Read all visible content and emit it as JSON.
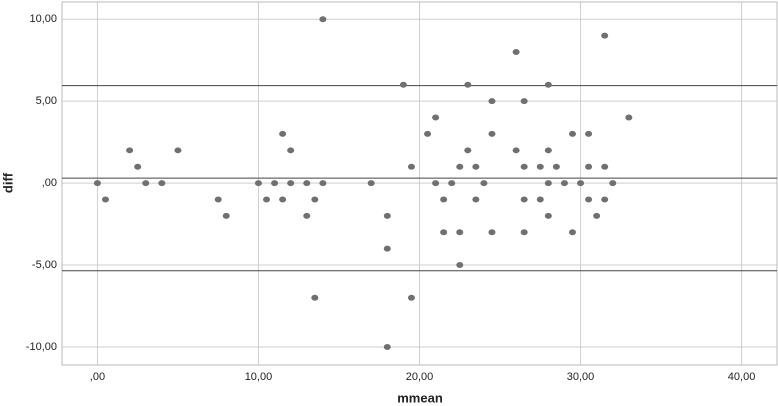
{
  "chart_data": {
    "type": "scatter",
    "x_label": "mmean",
    "y_label": "diff",
    "xlim": [
      -2.2,
      42.2
    ],
    "ylim": [
      -11.1,
      11.05
    ],
    "xticks": [
      {
        "value": 0,
        "label": ",00"
      },
      {
        "value": 10,
        "label": "10,00"
      },
      {
        "value": 20,
        "label": "20,00"
      },
      {
        "value": 30,
        "label": "30,00"
      },
      {
        "value": 40,
        "label": "40,00"
      }
    ],
    "yticks": [
      {
        "value": -10,
        "label": "-10,00"
      },
      {
        "value": -5,
        "label": "-5,00"
      },
      {
        "value": 0,
        "label": ",00"
      },
      {
        "value": 5,
        "label": "5,00"
      },
      {
        "value": 10,
        "label": "10,00"
      }
    ],
    "grid": true,
    "color": "#707070",
    "reference_lines": [
      5.95,
      0.3,
      -5.35
    ],
    "x": [
      0,
      0.5,
      2,
      2.5,
      3,
      4,
      5,
      7.5,
      8,
      10,
      10.5,
      11,
      11.5,
      11.5,
      12,
      12,
      13,
      13,
      13.5,
      13.5,
      14,
      14,
      17,
      18,
      18,
      18,
      19,
      19.5,
      19.5,
      20.5,
      21,
      21,
      21.5,
      21.5,
      22,
      22.5,
      22.5,
      22.5,
      23,
      23,
      23.5,
      23.5,
      24,
      24.5,
      24.5,
      24.5,
      26,
      26,
      26.5,
      26.5,
      26.5,
      26.5,
      27.5,
      27.5,
      28,
      28,
      28,
      28,
      28.5,
      29,
      29.5,
      29.5,
      30,
      30.5,
      30.5,
      30.5,
      31,
      31.5,
      31.5,
      31.5,
      32,
      33
    ],
    "values": [
      0,
      -1,
      2,
      1,
      0,
      0,
      2,
      -1,
      -2,
      0,
      -1,
      0,
      3,
      -1,
      2,
      0,
      0,
      -2,
      -1,
      -7,
      0,
      10,
      0,
      -2,
      -4,
      -10,
      6,
      1,
      -7,
      3,
      4,
      0,
      -1,
      -3,
      0,
      1,
      -3,
      -5,
      6,
      2,
      1,
      -1,
      0,
      5,
      3,
      -3,
      8,
      2,
      5,
      1,
      -1,
      -3,
      1,
      -1,
      6,
      2,
      0,
      -2,
      1,
      0,
      3,
      -3,
      0,
      3,
      1,
      -1,
      -2,
      9,
      1,
      -1,
      0,
      4
    ]
  }
}
